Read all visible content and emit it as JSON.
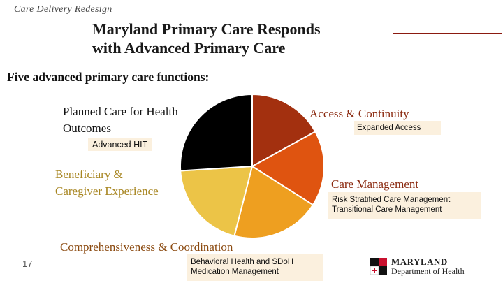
{
  "header": {
    "section": "Care Delivery Redesign",
    "title_line1": "Maryland Primary Care Responds",
    "title_line2": "with Advanced Primary Care"
  },
  "subtitle": "Five advanced primary care functions:",
  "pie": {
    "slices": [
      {
        "label": "Access & Continuity",
        "fraction": 0.17,
        "color": "#a3300f"
      },
      {
        "label": "Care Management",
        "fraction": 0.17,
        "color": "#df5410"
      },
      {
        "label": "Comprehensiveness & Coordination",
        "fraction": 0.2,
        "color": "#ee9f20"
      },
      {
        "label": "Beneficiary & Caregiver Experience",
        "fraction": 0.2,
        "color": "#ecc447"
      },
      {
        "label": "Planned Care for Health Outcomes",
        "fraction": 0.26,
        "color": "#000000"
      }
    ]
  },
  "functions": {
    "planned": {
      "line1": "Planned Care for Health",
      "line2": "Outcomes",
      "detail": "Advanced HIT"
    },
    "access": {
      "label": "Access & Continuity",
      "detail": "Expanded Access"
    },
    "beneficiary": {
      "line1": "Beneficiary &",
      "line2": "Caregiver Experience"
    },
    "care_management": {
      "label": "Care Management",
      "detail1": "Risk Stratified Care Management",
      "detail2": "Transitional Care Management"
    },
    "comprehensiveness": {
      "label": "Comprehensiveness & Coordination",
      "detail1": "Behavioral Health and SDoH",
      "detail2": "Medication Management"
    }
  },
  "footer": {
    "page_number": "17",
    "logo_line1": "MARYLAND",
    "logo_line2": "Department of Health"
  }
}
